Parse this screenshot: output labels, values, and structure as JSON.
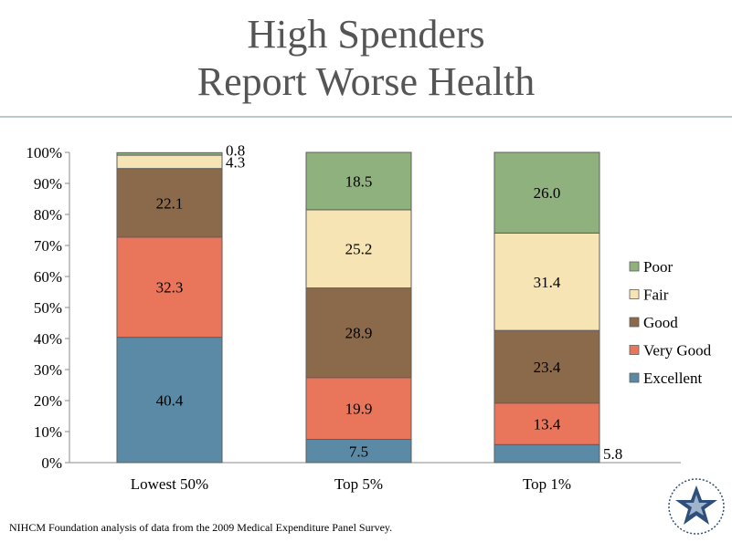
{
  "slide": {
    "title_line1": "High Spenders",
    "title_line2": "Report Worse Health",
    "footer": "NIHCM Foundation analysis of data from the 2009 Medical Expenditure Panel Survey."
  },
  "chart_data": {
    "type": "bar",
    "stacked": true,
    "categories": [
      "Lowest 50%",
      "Top 5%",
      "Top 1%"
    ],
    "series": [
      {
        "name": "Excellent",
        "color": "#5a8aa5",
        "values": [
          40.4,
          7.5,
          5.8
        ]
      },
      {
        "name": "Very Good",
        "color": "#e9765a",
        "values": [
          32.3,
          19.9,
          13.4
        ]
      },
      {
        "name": "Good",
        "color": "#8b6a4c",
        "values": [
          22.1,
          28.9,
          23.4
        ]
      },
      {
        "name": "Fair",
        "color": "#f6e4b4",
        "values": [
          4.3,
          25.2,
          31.4
        ]
      },
      {
        "name": "Poor",
        "color": "#8fb17d",
        "values": [
          0.8,
          18.5,
          26.0
        ]
      }
    ],
    "data_labels": [
      [
        "40.4",
        "32.3",
        "22.1",
        "4.3",
        "0.8"
      ],
      [
        "7.5",
        "19.9",
        "28.9",
        "25.2",
        "18.5"
      ],
      [
        "5.8",
        "13.4",
        "23.4",
        "31.4",
        "26.0"
      ]
    ],
    "y_ticks": [
      "0%",
      "10%",
      "20%",
      "30%",
      "40%",
      "50%",
      "60%",
      "70%",
      "80%",
      "90%",
      "100%"
    ],
    "ylim": [
      0,
      100
    ],
    "legend_position": "right",
    "legend_order": [
      "Poor",
      "Fair",
      "Good",
      "Very Good",
      "Excellent"
    ]
  }
}
